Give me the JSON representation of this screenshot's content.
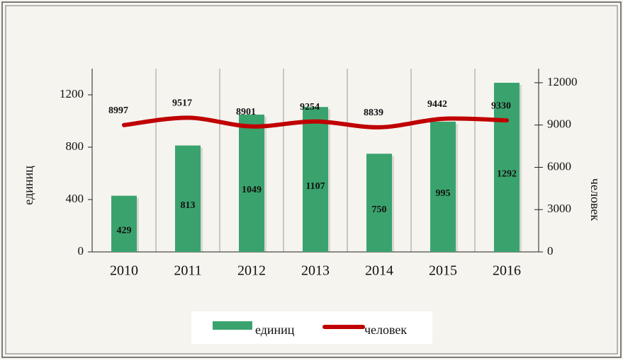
{
  "chart_data": {
    "type": "bar_line",
    "categories": [
      "2010",
      "2011",
      "2012",
      "2013",
      "2014",
      "2015",
      "2016"
    ],
    "series": [
      {
        "name": "единиц",
        "color": "#3aa36d",
        "values": [
          429,
          813,
          1049,
          1107,
          750,
          995,
          1292
        ]
      },
      {
        "name": "человек",
        "color": "#c00000",
        "axis": "y2",
        "values": [
          8997,
          9517,
          8901,
          9254,
          8839,
          9442,
          9330
        ]
      }
    ],
    "y_label": "единиц",
    "y2_label": "человек",
    "ylim": [
      0,
      1400
    ],
    "yticks": [
      0,
      400,
      800,
      1200
    ],
    "y2lim": [
      0,
      13000
    ],
    "y2ticks": [
      0,
      3000,
      6000,
      9000,
      12000
    ],
    "grid": "x",
    "legend": "bottom"
  }
}
